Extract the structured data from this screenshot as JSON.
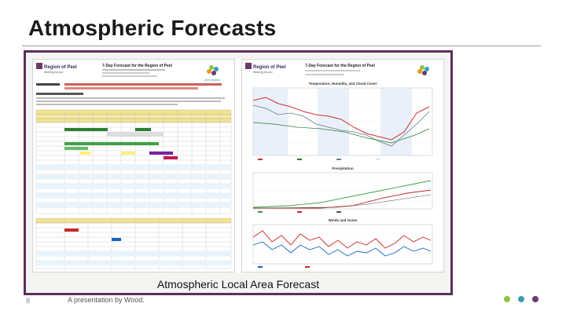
{
  "slide": {
    "title": "Atmospheric Forecasts",
    "caption": "Atmospheric Local Area Forecast",
    "slide_number": "8",
    "footer": "A presentation by Wood."
  },
  "left_doc": {
    "logo": "Region of Peel",
    "logo_sub": "Working for you",
    "heading": "7-Day Forecast for the Region of Peel",
    "logo_right": "peel weather"
  },
  "right_doc": {
    "logo": "Region of Peel",
    "logo_sub": "Working for you",
    "heading": "7-Day Forecast for the Region of Peel",
    "chart1_title": "Temperature, Humidity, and Cloud Cover",
    "chart2_title": "Precipitation",
    "chart3_title": "Winds and Gusts"
  },
  "colors": {
    "frame": "#5b2f5c",
    "dot1": "#8dc63f",
    "dot2": "#3aa1b5",
    "dot3": "#6b3b6d"
  }
}
